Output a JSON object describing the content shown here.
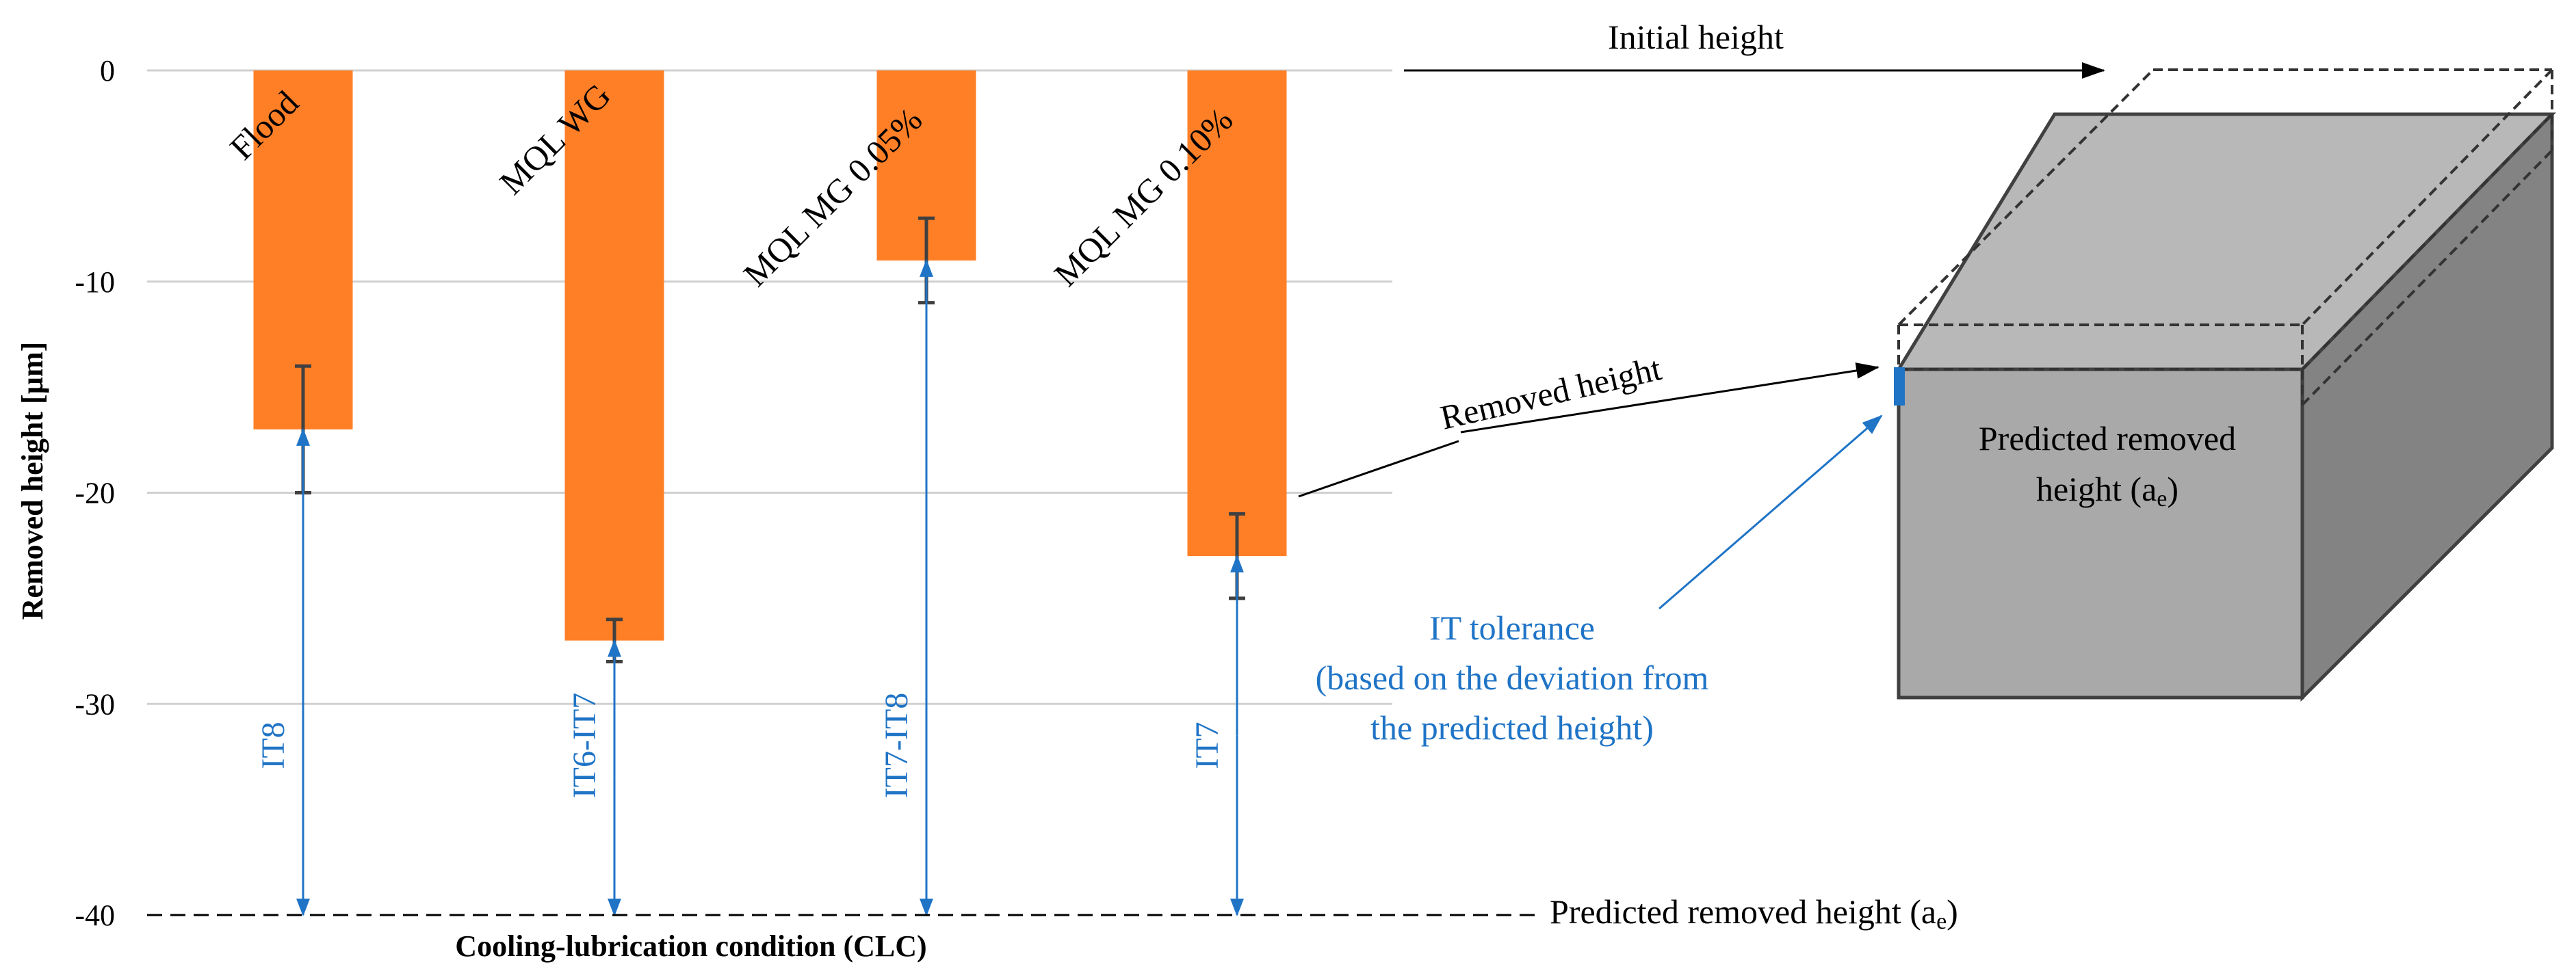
{
  "chart_data": {
    "type": "bar",
    "categories": [
      "Flood",
      "MQL WG",
      "MQL MG 0.05%",
      "MQL MG 0.10%"
    ],
    "values": [
      -17,
      -27,
      -9,
      -23
    ],
    "error_low": [
      -20,
      -28,
      -11,
      -25
    ],
    "error_high": [
      -14,
      -26,
      -7,
      -21
    ],
    "tolerance_labels": [
      "IT8",
      "IT6-IT7",
      "IT7-IT8",
      "IT7"
    ],
    "ylabel": "Removed height [µm]",
    "xlabel": "Cooling-lubrication condition (CLC)",
    "ylim": [
      -40,
      0
    ],
    "yticks": [
      0,
      -10,
      -20,
      -30,
      -40
    ],
    "ytick_labels": [
      "0",
      "-10",
      "-20",
      "-30",
      "-40"
    ],
    "predicted_line_value": -40,
    "grid": true
  },
  "annotations": {
    "initial_height": "Initial height",
    "removed_height": "Removed height",
    "predicted_removed_height_prefix": "Predicted removed height (a",
    "predicted_removed_height_sub": "e",
    "predicted_removed_height_suffix": ")",
    "box_label_line1": "Predicted removed",
    "box_label_line2_prefix": "height (a",
    "box_label_line2_sub": "e",
    "box_label_line2_suffix": ")",
    "it_tolerance_line1": "IT tolerance",
    "it_tolerance_line2": "(based on the deviation from",
    "it_tolerance_line3": "the predicted height)"
  },
  "colors": {
    "bar": "#FF7F27",
    "arrow_blue": "#1F74C6",
    "grid": "#D0D0D0",
    "errorbar": "#404040",
    "box_top": "#B8B8B8",
    "box_front": "#A9A9A9",
    "box_side": "#838383",
    "box_edge": "#404040"
  }
}
